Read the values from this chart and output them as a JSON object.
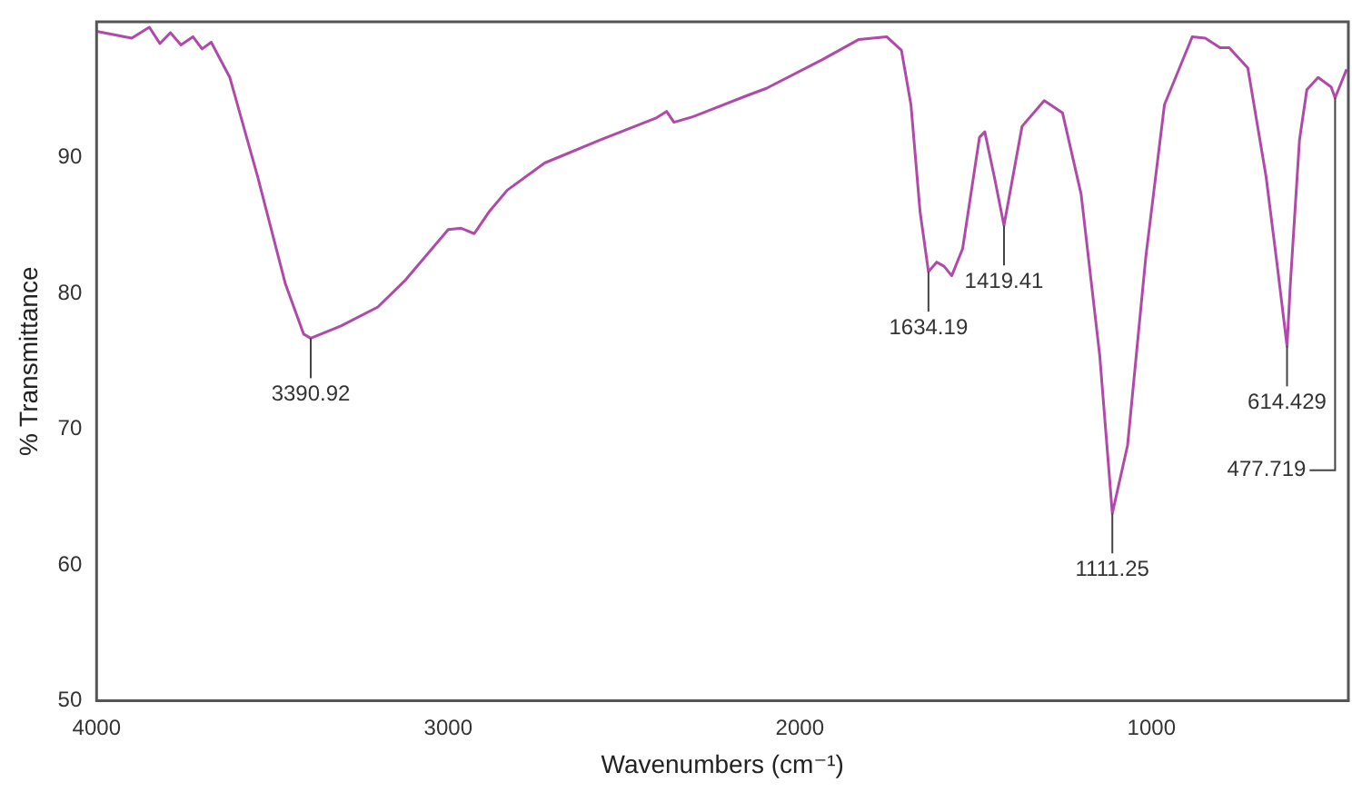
{
  "chart_data": {
    "type": "line",
    "xlabel": "Wavenumbers (cm⁻¹)",
    "ylabel": "% Transmittance",
    "xlim": [
      4000,
      440
    ],
    "ylim": [
      50,
      100
    ],
    "xticks": [
      4000,
      3000,
      2000,
      1000
    ],
    "yticks": [
      50,
      60,
      70,
      80,
      90
    ],
    "grid": false,
    "legend": false,
    "marker": "none",
    "line_style": "solid",
    "series": [
      {
        "color": "#b04aa8",
        "x": [
          4000,
          3900,
          3850,
          3820,
          3790,
          3760,
          3726,
          3700,
          3674,
          3621,
          3542,
          3463,
          3411,
          3390.92,
          3305,
          3200,
          3121,
          3000,
          2963,
          2926,
          2884,
          2832,
          2726,
          2568,
          2410,
          2379,
          2358,
          2305,
          2147,
          2095,
          1937,
          1832,
          1753,
          1711,
          1684,
          1658,
          1634.19,
          1611,
          1590,
          1568,
          1537,
          1489,
          1474,
          1447,
          1419.41,
          1368,
          1305,
          1253,
          1200,
          1147,
          1111.25,
          1068,
          1016,
          963,
          884,
          847,
          805,
          779,
          726,
          674,
          642,
          614.429,
          605,
          579,
          558,
          526,
          489,
          477.719,
          445
        ],
        "values": [
          99.3,
          98.8,
          99.6,
          98.4,
          99.2,
          98.3,
          98.9,
          98.0,
          98.5,
          95.9,
          88.6,
          80.7,
          77.0,
          76.7,
          77.6,
          79.0,
          81.0,
          84.7,
          84.8,
          84.4,
          86.0,
          87.6,
          89.6,
          91.3,
          92.9,
          93.4,
          92.6,
          93.0,
          94.6,
          95.1,
          97.2,
          98.7,
          98.9,
          97.9,
          93.9,
          86.0,
          81.6,
          82.3,
          82.0,
          81.3,
          83.3,
          91.5,
          91.9,
          88.6,
          85.0,
          92.3,
          94.2,
          93.3,
          87.3,
          75.4,
          63.8,
          68.8,
          82.7,
          93.9,
          98.9,
          98.8,
          98.1,
          98.1,
          96.6,
          88.6,
          82.0,
          76.1,
          80.7,
          91.3,
          95.0,
          95.9,
          95.2,
          94.4,
          96.5
        ]
      }
    ],
    "annotations": [
      {
        "text": "3390.92",
        "x": 3390.92,
        "y": 76.7
      },
      {
        "text": "1634.19",
        "x": 1634.19,
        "y": 81.6
      },
      {
        "text": "1419.41",
        "x": 1419.41,
        "y": 85.0
      },
      {
        "text": "1111.25",
        "x": 1111.25,
        "y": 63.8
      },
      {
        "text": "614.429",
        "x": 614.429,
        "y": 76.1
      },
      {
        "text": "477.719",
        "x": 477.719,
        "y": 94.4
      }
    ]
  }
}
